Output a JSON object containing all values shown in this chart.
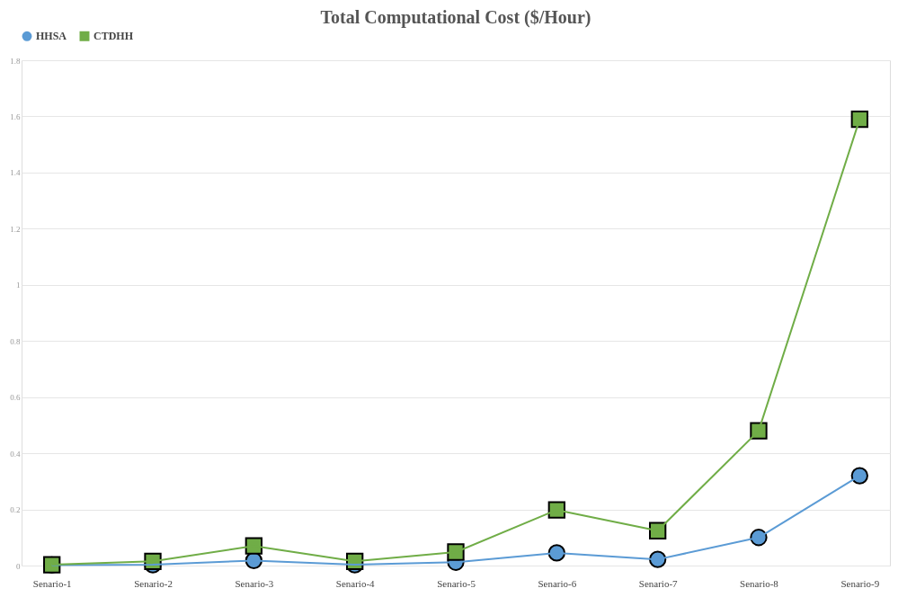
{
  "chart_data": {
    "type": "line",
    "title": "Total Computational Cost ($/Hour)",
    "categories": [
      "Senario-1",
      "Senario-2",
      "Senario-3",
      "Senario-4",
      "Senario-5",
      "Senario-6",
      "Senario-7",
      "Senario-8",
      "Senario-9"
    ],
    "series": [
      {
        "name": "HHSA",
        "color": "#5b9bd5",
        "marker": "circle",
        "values": [
          0.002,
          0.003,
          0.018,
          0.003,
          0.012,
          0.045,
          0.022,
          0.1,
          0.32
        ]
      },
      {
        "name": "CTDHH",
        "color": "#70ad47",
        "marker": "square",
        "values": [
          0.003,
          0.015,
          0.07,
          0.015,
          0.048,
          0.198,
          0.124,
          0.48,
          1.59
        ]
      }
    ],
    "ylim": [
      0,
      1.8
    ],
    "yticks": [
      0,
      0.2,
      0.4,
      0.6,
      0.8,
      1,
      1.2,
      1.4,
      1.6,
      1.8
    ],
    "grid": "y",
    "legend": "top",
    "line_style": "solid"
  }
}
